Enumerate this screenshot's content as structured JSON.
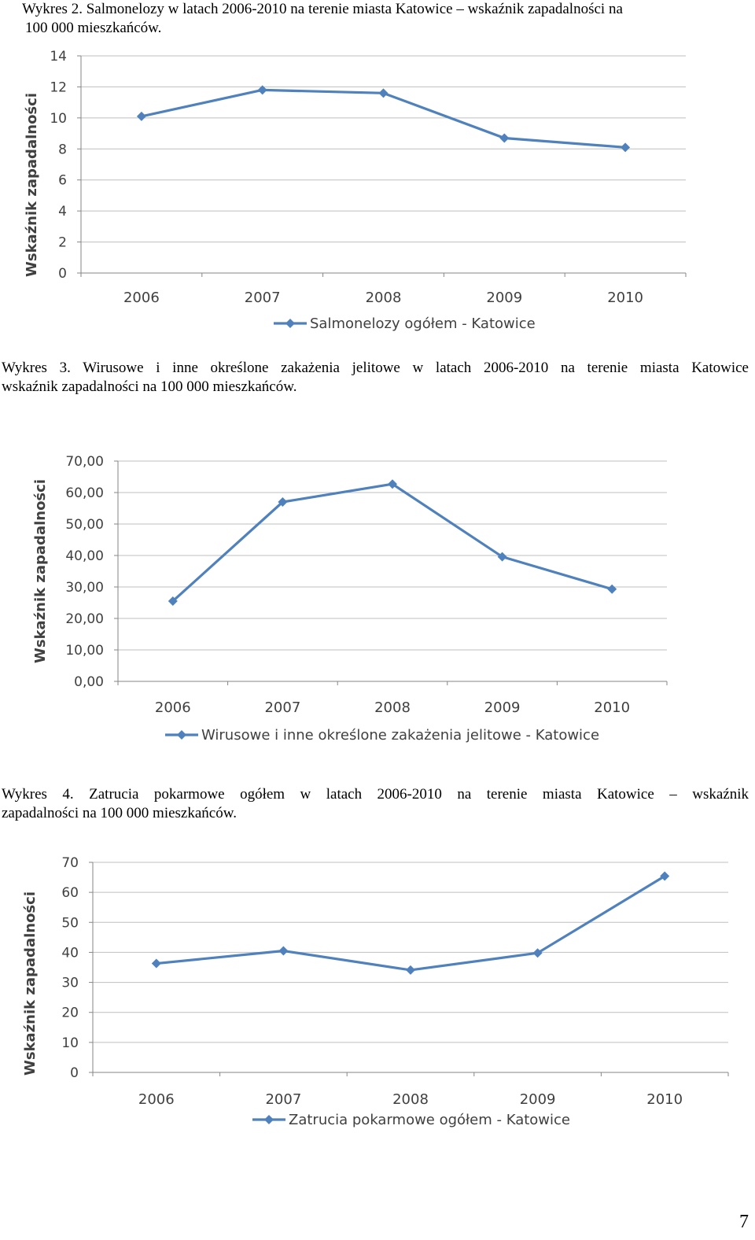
{
  "page_number": "7",
  "chart_data": [
    {
      "type": "line",
      "caption_lines": [
        "Wykres 2. Salmonelozy  w latach 2006-2010 na terenie miasta Katowice  – wskaźnik zapadalności na",
        "100 000 mieszkańców."
      ],
      "ylabel": "Wskaźnik zapadalności",
      "xlabel": "",
      "categories": [
        "2006",
        "2007",
        "2008",
        "2009",
        "2010"
      ],
      "yticks": [
        "0",
        "2",
        "4",
        "6",
        "8",
        "10",
        "12",
        "14"
      ],
      "ylim": [
        0,
        14
      ],
      "grid": true,
      "legend_position": "bottom",
      "series": [
        {
          "name": "Salmonelozy ogółem - Katowice",
          "values": [
            10.1,
            11.8,
            11.6,
            8.7,
            8.1
          ],
          "color": "#4f81bd"
        }
      ]
    },
    {
      "type": "line",
      "caption_lines": [
        "Wykres 3. Wirusowe i inne określone zakażenia jelitowe w latach 2006-2010 na terenie miasta Katowice",
        "wskaźnik zapadalności na 100 000 mieszkańców."
      ],
      "ylabel": "Wskaźnik zapadalności",
      "xlabel": "",
      "categories": [
        "2006",
        "2007",
        "2008",
        "2009",
        "2010"
      ],
      "yticks": [
        "0,00",
        "10,00",
        "20,00",
        "30,00",
        "40,00",
        "50,00",
        "60,00",
        "70,00"
      ],
      "ylim": [
        0,
        70
      ],
      "grid": true,
      "legend_position": "bottom",
      "series": [
        {
          "name": "Wirusowe i inne określone zakażenia jelitowe - Katowice",
          "values": [
            25.5,
            57,
            62.7,
            39.6,
            29.3
          ],
          "color": "#4f81bd"
        }
      ]
    },
    {
      "type": "line",
      "caption_lines": [
        "Wykres 4. Zatrucia pokarmowe ogółem  w latach 2006-2010 na terenie miasta Katowice – wskaźnik",
        "zapadalności na 100 000 mieszkańców."
      ],
      "ylabel": "Wskaźnik zapadalności",
      "xlabel": "",
      "categories": [
        "2006",
        "2007",
        "2008",
        "2009",
        "2010"
      ],
      "yticks": [
        "0",
        "10",
        "20",
        "30",
        "40",
        "50",
        "60",
        "70"
      ],
      "ylim": [
        0,
        70
      ],
      "grid": true,
      "legend_position": "bottom",
      "series": [
        {
          "name": "Zatrucia pokarmowe ogółem - Katowice",
          "values": [
            36.3,
            40.5,
            34.1,
            39.8,
            65.4
          ],
          "color": "#4f81bd"
        }
      ]
    }
  ]
}
